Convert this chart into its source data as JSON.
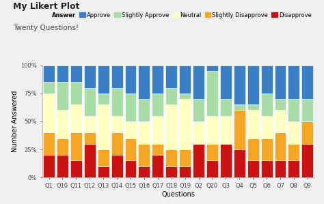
{
  "title": "My Likert Plot",
  "subtitle": "Twenty Questions!",
  "xlabel": "Questions",
  "ylabel": "Number Answered",
  "categories": [
    "Q1",
    "Q10",
    "Q11",
    "Q12",
    "Q13",
    "Q14",
    "Q15",
    "Q16",
    "Q17",
    "Q18",
    "Q19",
    "Q2",
    "Q20",
    "Q3",
    "Q4",
    "Q5",
    "Q6",
    "Q7",
    "Q8",
    "Q9"
  ],
  "series": {
    "Disapprove": [
      20,
      20,
      15,
      30,
      10,
      20,
      15,
      10,
      20,
      10,
      10,
      30,
      15,
      30,
      25,
      15,
      15,
      15,
      15,
      30
    ],
    "Slightly Disapprove": [
      20,
      15,
      25,
      10,
      15,
      20,
      20,
      20,
      10,
      15,
      15,
      0,
      15,
      0,
      35,
      20,
      20,
      25,
      15,
      20
    ],
    "Neutral": [
      35,
      25,
      25,
      15,
      40,
      15,
      15,
      20,
      25,
      40,
      45,
      20,
      25,
      25,
      0,
      25,
      20,
      20,
      20,
      0
    ],
    "Slightly Approve": [
      10,
      25,
      20,
      25,
      10,
      25,
      25,
      20,
      20,
      15,
      5,
      20,
      40,
      15,
      5,
      5,
      20,
      10,
      20,
      20
    ],
    "Approve": [
      15,
      15,
      15,
      20,
      25,
      20,
      25,
      30,
      25,
      20,
      25,
      30,
      5,
      30,
      35,
      35,
      25,
      30,
      30,
      30
    ]
  },
  "colors": {
    "Disapprove": "#CC1111",
    "Slightly Disapprove": "#F5A623",
    "Neutral": "#FFFFC0",
    "Slightly Approve": "#A8DDA8",
    "Approve": "#3A7EC6"
  },
  "legend_label": "Answer",
  "bg_color": "#F0F0F0",
  "plot_bg": "#FAFAFA",
  "ylim": [
    0,
    100
  ],
  "yticks": [
    0,
    25,
    50,
    75,
    100
  ],
  "ytick_labels": [
    "0%",
    "25%",
    "50%",
    "75%",
    "100%"
  ],
  "title_fontsize": 9,
  "subtitle_fontsize": 7.5,
  "axis_fontsize": 7,
  "tick_fontsize": 6,
  "legend_fontsize": 6
}
